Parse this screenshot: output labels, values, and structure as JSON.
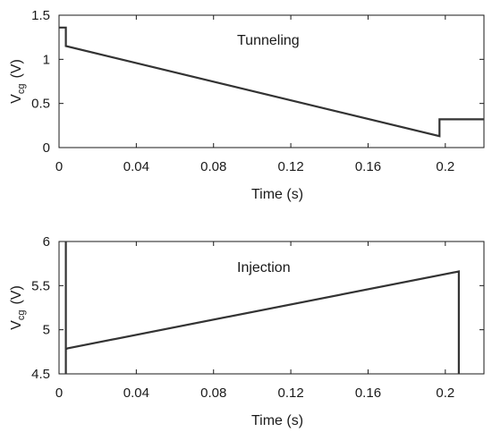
{
  "chart_data": [
    {
      "type": "line",
      "title": "",
      "annotation": "Tunneling",
      "xlabel": "Time (s)",
      "ylabel_main": "V",
      "ylabel_sub": "cg",
      "ylabel_unit": "(V)",
      "xlim": [
        0,
        0.22
      ],
      "ylim": [
        0,
        1.5
      ],
      "xticks": [
        0,
        0.04,
        0.08,
        0.12,
        0.16,
        0.2
      ],
      "xtick_labels": [
        "0",
        "0.04",
        "0.08",
        "0.12",
        "0.16",
        "0.2"
      ],
      "yticks": [
        0,
        0.5,
        1,
        1.5
      ],
      "ytick_labels": [
        "0",
        "0.5",
        "1",
        "1.5"
      ],
      "grid": false,
      "series": [
        {
          "x": [
            0,
            0.0035,
            0.0035,
            0.197,
            0.197,
            0.22
          ],
          "y": [
            1.36,
            1.36,
            1.15,
            0.13,
            0.32,
            0.32
          ]
        }
      ]
    },
    {
      "type": "line",
      "title": "",
      "annotation": "Injection",
      "xlabel": "Time (s)",
      "ylabel_main": "V",
      "ylabel_sub": "cg",
      "ylabel_unit": "(V)",
      "xlim": [
        0,
        0.22
      ],
      "ylim": [
        4.5,
        6
      ],
      "xticks": [
        0,
        0.04,
        0.08,
        0.12,
        0.16,
        0.2
      ],
      "xtick_labels": [
        "0",
        "0.04",
        "0.08",
        "0.12",
        "0.16",
        "0.2"
      ],
      "yticks": [
        4.5,
        5,
        5.5,
        6
      ],
      "ytick_labels": [
        "4.5",
        "5",
        "5.5",
        "6"
      ],
      "grid": false,
      "series": [
        {
          "x": [
            0.0035,
            0.0035,
            0.0035,
            0.0045,
            0.207,
            0.207
          ],
          "y": [
            6.0,
            4.5,
            4.78,
            4.79,
            5.66,
            4.5
          ]
        }
      ]
    }
  ]
}
